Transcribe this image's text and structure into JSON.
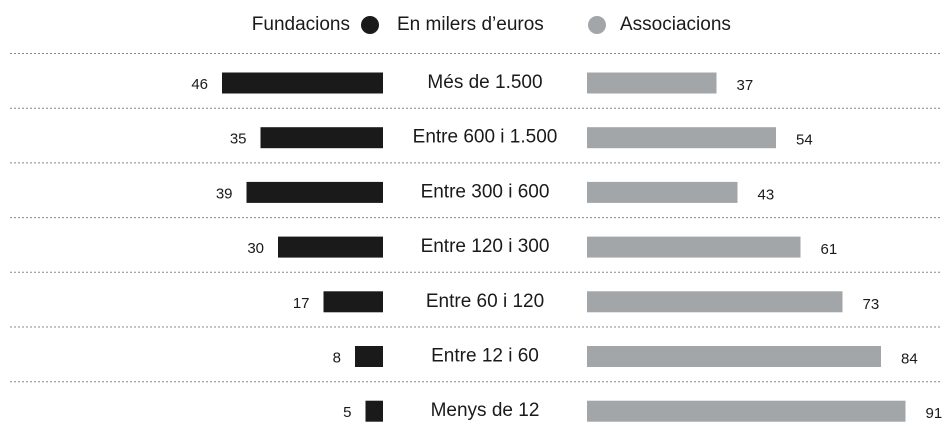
{
  "chart_data": {
    "type": "butterfly",
    "subtitle": "En milers d’euros",
    "categories": [
      "Més de 1.500",
      "Entre 600 i 1.500",
      "Entre 300 i 600",
      "Entre 120 i 300",
      "Entre 60 i 120",
      "Entre 12 i 60",
      "Menys de 12"
    ],
    "series": [
      {
        "name": "Fundacions",
        "color": "#1a1a1a",
        "values": [
          46,
          35,
          39,
          30,
          17,
          8,
          5
        ]
      },
      {
        "name": "Associacions",
        "color": "#a3a6a9",
        "values": [
          37,
          54,
          43,
          61,
          73,
          84,
          91
        ]
      }
    ]
  }
}
